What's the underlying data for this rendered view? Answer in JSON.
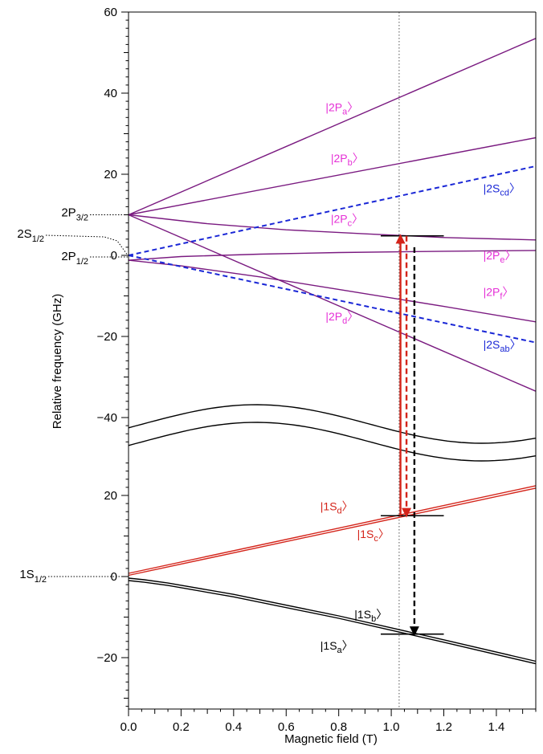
{
  "chart_data": {
    "type": "line",
    "xlabel": "Magnetic field (T)",
    "ylabel": "Relative frequency (GHz)",
    "xlim": [
      0,
      1.55
    ],
    "x_ticks": [
      "0.0",
      "0.2",
      "0.4",
      "0.6",
      "0.8",
      "1.0",
      "1.2",
      "1.4"
    ],
    "x_tick_values": [
      0,
      0.2,
      0.4,
      0.6,
      0.8,
      1.0,
      1.2,
      1.4
    ],
    "broken_y_axis": true,
    "upper_panel": {
      "ylim": [
        -47,
        60
      ],
      "y_ticks": [
        "60",
        "40",
        "20",
        "0",
        "−20",
        "−40"
      ],
      "y_tick_values": [
        60,
        40,
        20,
        0,
        -20,
        -40
      ]
    },
    "lower_panel": {
      "ylim": [
        -30,
        28
      ],
      "y_ticks": [
        "20",
        "0",
        "−20"
      ],
      "y_tick_values": [
        20,
        0,
        -20
      ]
    },
    "vertical_marker_x": 1.03,
    "colors": {
      "2P": "#7a1a80",
      "2S": "#1a27d6",
      "1S_red": "#d4241a",
      "1S_black": "#000000",
      "label_2P": "#e52fd6",
      "label_2S": "#1a27d6",
      "label_1S_red": "#d4241a",
      "label_1S_black": "#000000"
    },
    "series": [
      {
        "id": "2Pa",
        "panel": "upper",
        "style": "solid",
        "color": "#7a1a80",
        "x": [
          0,
          1.55
        ],
        "y": [
          10,
          53.5
        ]
      },
      {
        "id": "2Pb",
        "panel": "upper",
        "style": "solid",
        "color": "#7a1a80",
        "x": [
          0,
          1.55
        ],
        "y": [
          10,
          29
        ]
      },
      {
        "id": "2Pc",
        "panel": "upper",
        "style": "solid",
        "color": "#7a1a80",
        "x": [
          0,
          0.3,
          0.6,
          0.9,
          1.2,
          1.55
        ],
        "y": [
          10,
          7.8,
          6.3,
          5.3,
          4.4,
          3.8
        ]
      },
      {
        "id": "2Pd",
        "panel": "upper",
        "style": "solid",
        "color": "#7a1a80",
        "x": [
          0,
          1.55
        ],
        "y": [
          10,
          -33.5
        ]
      },
      {
        "id": "2Pe",
        "panel": "upper",
        "style": "solid",
        "color": "#7a1a80",
        "x": [
          0,
          0.2,
          0.5,
          0.8,
          1.2,
          1.55
        ],
        "y": [
          -1.2,
          -0.3,
          0.3,
          0.7,
          1.0,
          1.2
        ]
      },
      {
        "id": "2Pf",
        "panel": "upper",
        "style": "solid",
        "color": "#7a1a80",
        "x": [
          0,
          0.2,
          0.5,
          0.8,
          1.2,
          1.55
        ],
        "y": [
          -1.2,
          -2.6,
          -5.3,
          -8.4,
          -12.6,
          -16.4
        ]
      },
      {
        "id": "2Scd",
        "panel": "upper",
        "style": "dashed",
        "color": "#1a27d6",
        "x": [
          0,
          1.55
        ],
        "y": [
          0,
          22
        ]
      },
      {
        "id": "2Sab",
        "panel": "upper",
        "style": "dashed",
        "color": "#1a27d6",
        "x": [
          0,
          1.55
        ],
        "y": [
          0,
          -21.5
        ]
      },
      {
        "id": "1Sd",
        "panel": "lower",
        "style": "solid",
        "color": "#d4241a",
        "x": [
          0,
          1.55
        ],
        "y": [
          0.8,
          22.4
        ]
      },
      {
        "id": "1Sc",
        "panel": "lower",
        "style": "solid",
        "color": "#d4241a",
        "x": [
          0,
          1.55
        ],
        "y": [
          0.3,
          21.8
        ]
      },
      {
        "id": "1Sb",
        "panel": "lower",
        "style": "solid",
        "color": "#000000",
        "x": [
          0,
          0.06,
          0.15,
          0.4,
          0.8,
          1.2,
          1.55
        ],
        "y": [
          -0.4,
          -0.8,
          -1.6,
          -4.4,
          -9.7,
          -15.6,
          -20.9
        ]
      },
      {
        "id": "1Sa",
        "panel": "lower",
        "style": "solid",
        "color": "#000000",
        "x": [
          0,
          0.06,
          0.15,
          0.4,
          0.8,
          1.2,
          1.55
        ],
        "y": [
          -1.0,
          -1.4,
          -2.2,
          -5.0,
          -10.3,
          -16.2,
          -21.5
        ]
      }
    ],
    "level_markers": [
      {
        "panel": "upper",
        "x": [
          0.96,
          1.2
        ],
        "y": 4.8
      },
      {
        "panel": "lower",
        "x": [
          0.96,
          1.2
        ],
        "y": 15.0
      },
      {
        "panel": "lower",
        "x": [
          0.96,
          1.2
        ],
        "y": -14.2
      }
    ],
    "transitions": [
      {
        "id": "red-solid",
        "style": "solid",
        "color": "#d4241a",
        "x": 1.035,
        "from": {
          "panel": "lower",
          "y": 15.0
        },
        "to": {
          "panel": "upper",
          "y": 4.8
        },
        "arrowhead": "to"
      },
      {
        "id": "red-dashed",
        "style": "dashed",
        "color": "#d4241a",
        "x": 1.058,
        "from": {
          "panel": "upper",
          "y": 4.8
        },
        "to": {
          "panel": "lower",
          "y": 15.0
        },
        "arrowhead": "to"
      },
      {
        "id": "black-dashed",
        "style": "dashed",
        "color": "#000000",
        "x": 1.088,
        "from": {
          "panel": "upper",
          "y": 2.0
        },
        "to": {
          "panel": "lower",
          "y": -14.2
        },
        "arrowhead": "to"
      }
    ],
    "state_labels": [
      {
        "id": "2Pa",
        "base": "|2P",
        "sub": "a",
        "color": "#e52fd6",
        "panel": "upper",
        "x": 0.75,
        "y": 35.5
      },
      {
        "id": "2Pb",
        "base": "|2P",
        "sub": "b",
        "color": "#e52fd6",
        "panel": "upper",
        "x": 0.77,
        "y": 23.0
      },
      {
        "id": "2Pc",
        "base": "|2P",
        "sub": "c",
        "color": "#e52fd6",
        "panel": "upper",
        "x": 0.77,
        "y": 8.0
      },
      {
        "id": "2Pd",
        "base": "|2P",
        "sub": "d",
        "color": "#e52fd6",
        "panel": "upper",
        "x": 0.75,
        "y": -16.0
      },
      {
        "id": "2Pe",
        "base": "|2P",
        "sub": "e",
        "color": "#e52fd6",
        "panel": "upper",
        "x": 1.35,
        "y": -1.0
      },
      {
        "id": "2Pf",
        "base": "|2P",
        "sub": "f",
        "color": "#e52fd6",
        "panel": "upper",
        "x": 1.35,
        "y": -10.0
      },
      {
        "id": "2Scd",
        "base": "|2S",
        "sub": "cd",
        "color": "#1a27d6",
        "panel": "upper",
        "x": 1.35,
        "y": 15.5
      },
      {
        "id": "2Sab",
        "base": "|2S",
        "sub": "ab",
        "color": "#1a27d6",
        "panel": "upper",
        "x": 1.35,
        "y": -23.0
      },
      {
        "id": "1Sd",
        "base": "|1S",
        "sub": "d",
        "color": "#d4241a",
        "panel": "lower",
        "x": 0.73,
        "y": 16.3
      },
      {
        "id": "1Sc",
        "base": "|1S",
        "sub": "c",
        "color": "#d4241a",
        "panel": "lower",
        "x": 0.87,
        "y": 9.5
      },
      {
        "id": "1Sb",
        "base": "|1S",
        "sub": "b",
        "color": "#000000",
        "panel": "lower",
        "x": 0.86,
        "y": -10.3
      },
      {
        "id": "1Sa",
        "base": "|1S",
        "sub": "a",
        "color": "#000000",
        "panel": "lower",
        "x": 0.73,
        "y": -18.0
      }
    ],
    "level_labels": [
      {
        "id": "2P32",
        "base": "2P",
        "sub": "3/2",
        "panel": "upper",
        "y": 10
      },
      {
        "id": "2S12",
        "base": "2S",
        "sub": "1/2",
        "panel": "upper",
        "y": 0
      },
      {
        "id": "2P12",
        "base": "2P",
        "sub": "1/2",
        "panel": "upper",
        "y": 0
      },
      {
        "id": "1S12",
        "base": "1S",
        "sub": "1/2",
        "panel": "lower",
        "y": 0
      }
    ]
  }
}
